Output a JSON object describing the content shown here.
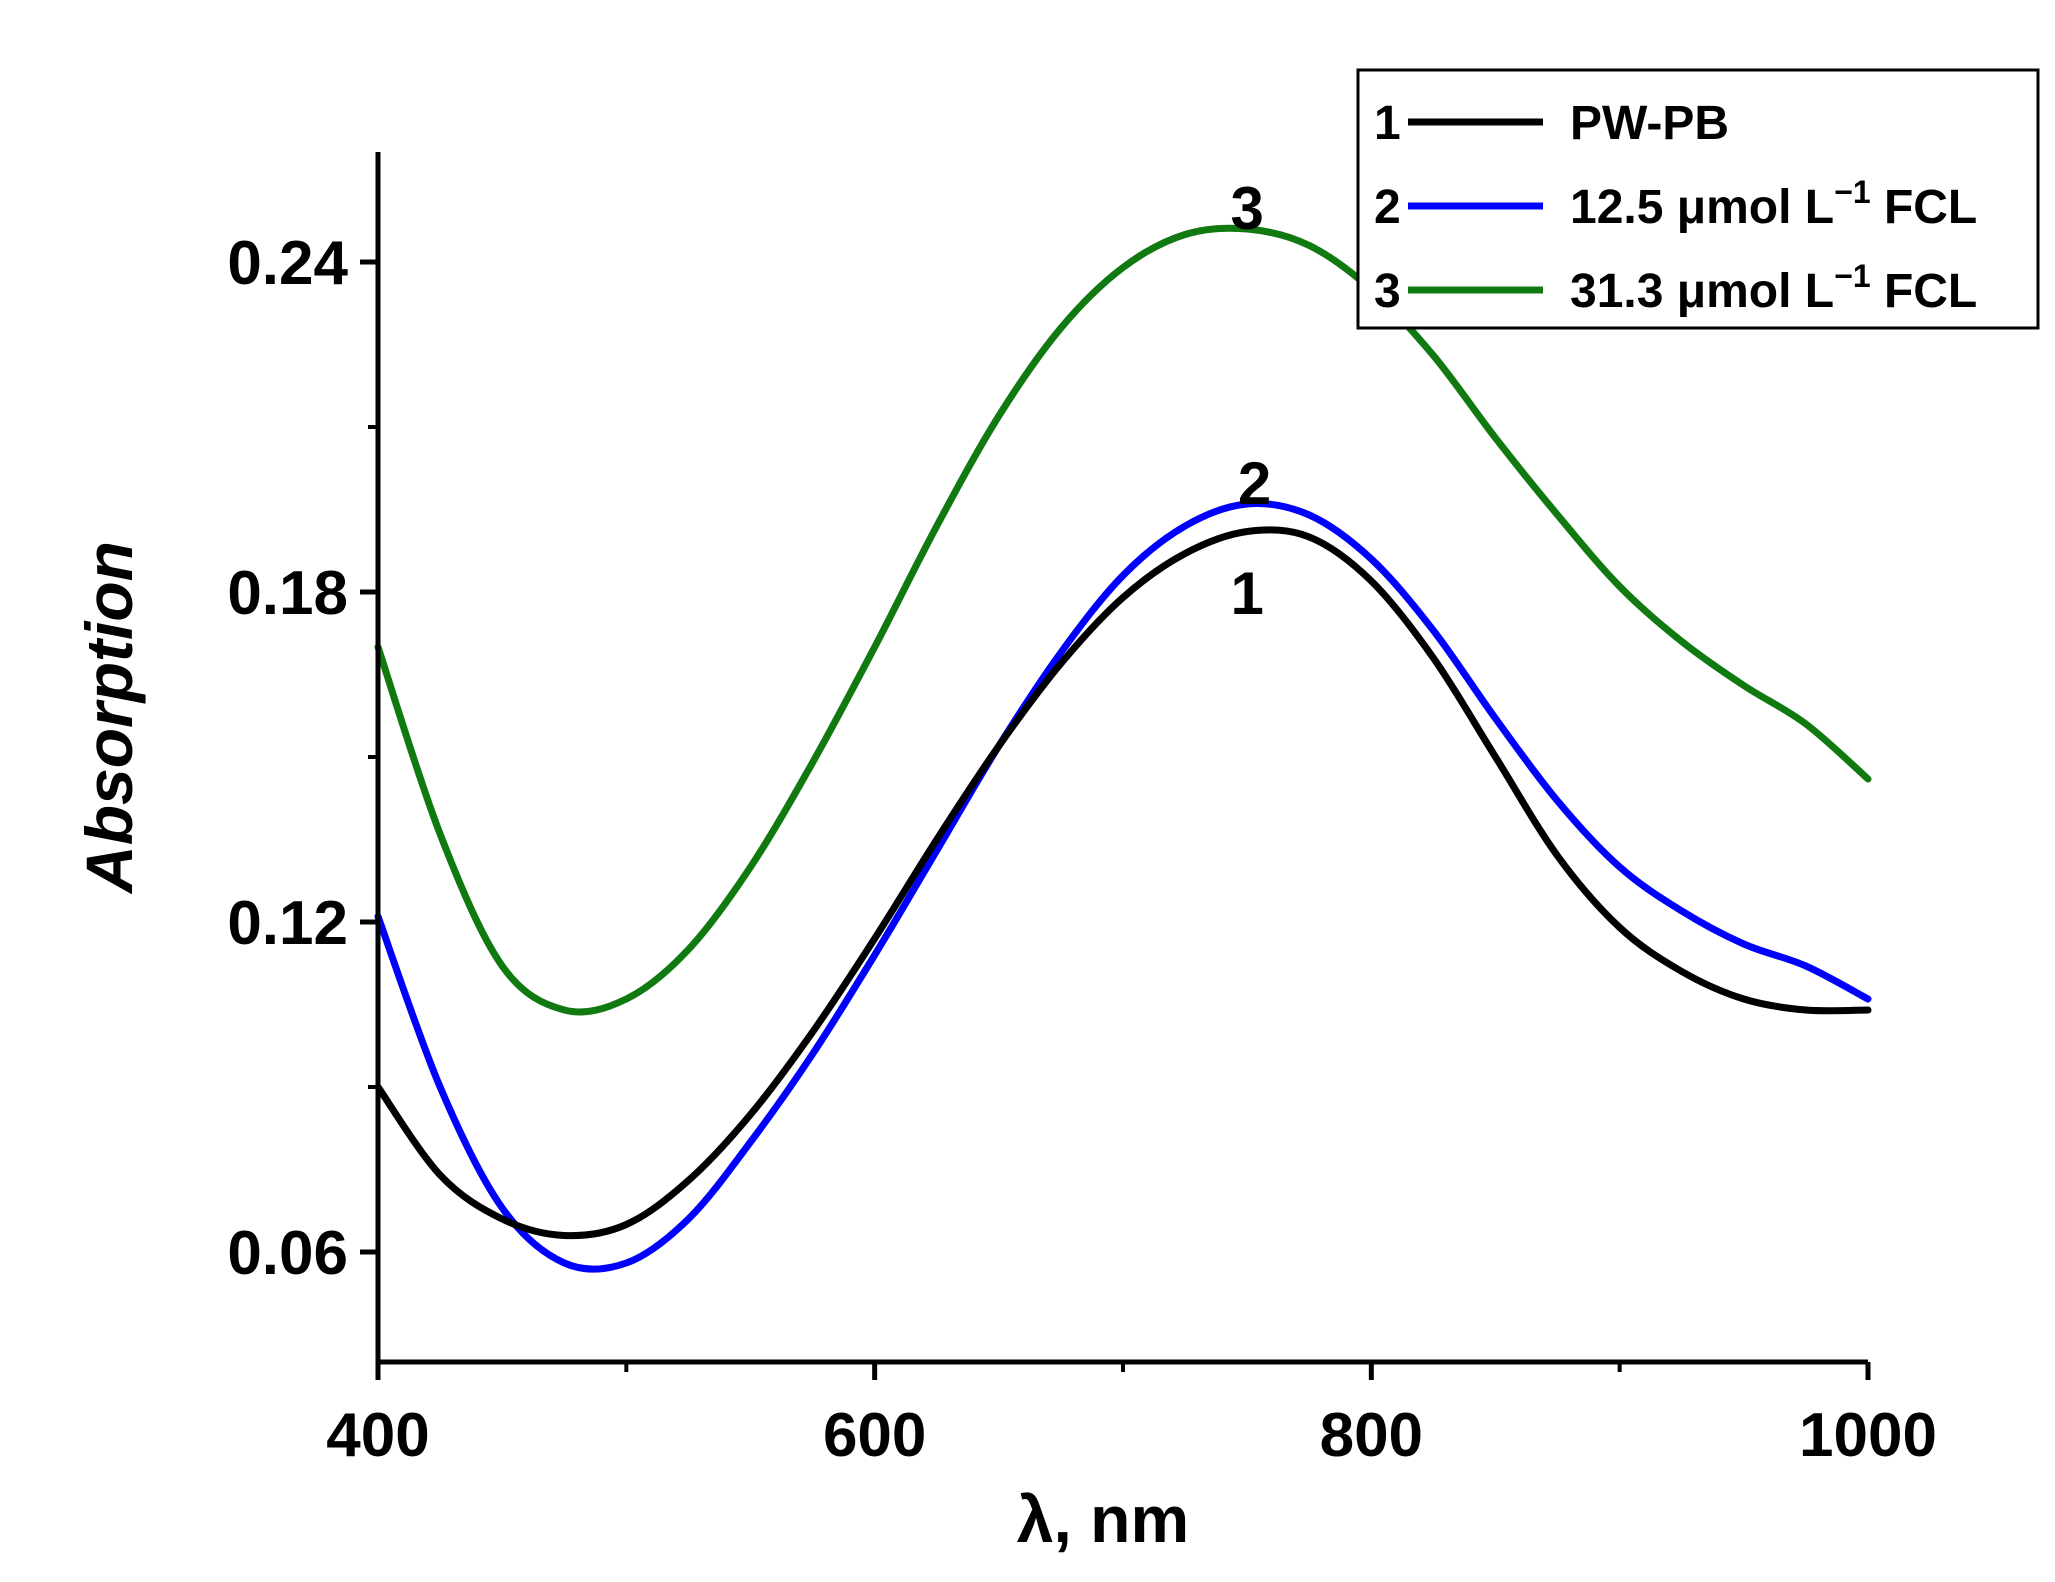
{
  "chart_data": {
    "type": "line",
    "title": "",
    "xlabel": "λ, nm",
    "ylabel": "Absorption",
    "xlim": [
      400,
      1000
    ],
    "ylim": [
      0.04,
      0.26
    ],
    "xticks": [
      400,
      600,
      800,
      1000
    ],
    "xtick_labels": [
      "400",
      "600",
      "800",
      "1000"
    ],
    "yticks": [
      0.06,
      0.12,
      0.18,
      0.24
    ],
    "ytick_labels": [
      "0.06",
      "0.12",
      "0.18",
      "0.24"
    ],
    "x_minor_ticks": [
      500,
      700,
      900
    ],
    "y_minor_ticks": [
      0.09,
      0.15,
      0.21
    ],
    "legend_position": "top-right",
    "series": [
      {
        "id": "1",
        "name": "PW-PB",
        "color": "#000000",
        "x": [
          400,
          425,
          450,
          475,
          500,
          525,
          550,
          575,
          600,
          625,
          650,
          675,
          700,
          725,
          750,
          775,
          800,
          825,
          850,
          875,
          900,
          925,
          950,
          975,
          1000
        ],
        "y": [
          0.09,
          0.074,
          0.066,
          0.063,
          0.065,
          0.073,
          0.085,
          0.1,
          0.117,
          0.135,
          0.152,
          0.167,
          0.179,
          0.187,
          0.191,
          0.19,
          0.182,
          0.168,
          0.15,
          0.132,
          0.119,
          0.111,
          0.106,
          0.104,
          0.104
        ]
      },
      {
        "id": "2",
        "name": "12.5 μmol L",
        "name_sup": "−1",
        "name_suffix": " FCL",
        "color": "#0000ff",
        "x": [
          400,
          425,
          450,
          475,
          500,
          525,
          550,
          575,
          600,
          625,
          650,
          675,
          700,
          725,
          750,
          775,
          800,
          825,
          850,
          875,
          900,
          925,
          950,
          975,
          1000
        ],
        "y": [
          0.121,
          0.09,
          0.068,
          0.058,
          0.058,
          0.066,
          0.08,
          0.096,
          0.114,
          0.133,
          0.152,
          0.169,
          0.183,
          0.192,
          0.196,
          0.194,
          0.186,
          0.173,
          0.157,
          0.142,
          0.13,
          0.122,
          0.116,
          0.112,
          0.106
        ]
      },
      {
        "id": "3",
        "name": "31.3 μmol L",
        "name_sup": "−1",
        "name_suffix": " FCL",
        "color": "#107a10",
        "x": [
          400,
          425,
          450,
          475,
          500,
          525,
          550,
          575,
          600,
          625,
          650,
          675,
          700,
          725,
          750,
          775,
          800,
          825,
          850,
          875,
          900,
          925,
          950,
          975,
          1000
        ],
        "y": [
          0.17,
          0.136,
          0.112,
          0.104,
          0.106,
          0.115,
          0.13,
          0.149,
          0.17,
          0.192,
          0.212,
          0.228,
          0.239,
          0.245,
          0.246,
          0.243,
          0.235,
          0.223,
          0.208,
          0.194,
          0.181,
          0.171,
          0.163,
          0.156,
          0.146
        ]
      }
    ],
    "curve_labels": [
      {
        "text": "3",
        "x": 750,
        "y": 0.25
      },
      {
        "text": "2",
        "x": 753,
        "y": 0.2
      },
      {
        "text": "1",
        "x": 750,
        "y": 0.18
      }
    ]
  }
}
